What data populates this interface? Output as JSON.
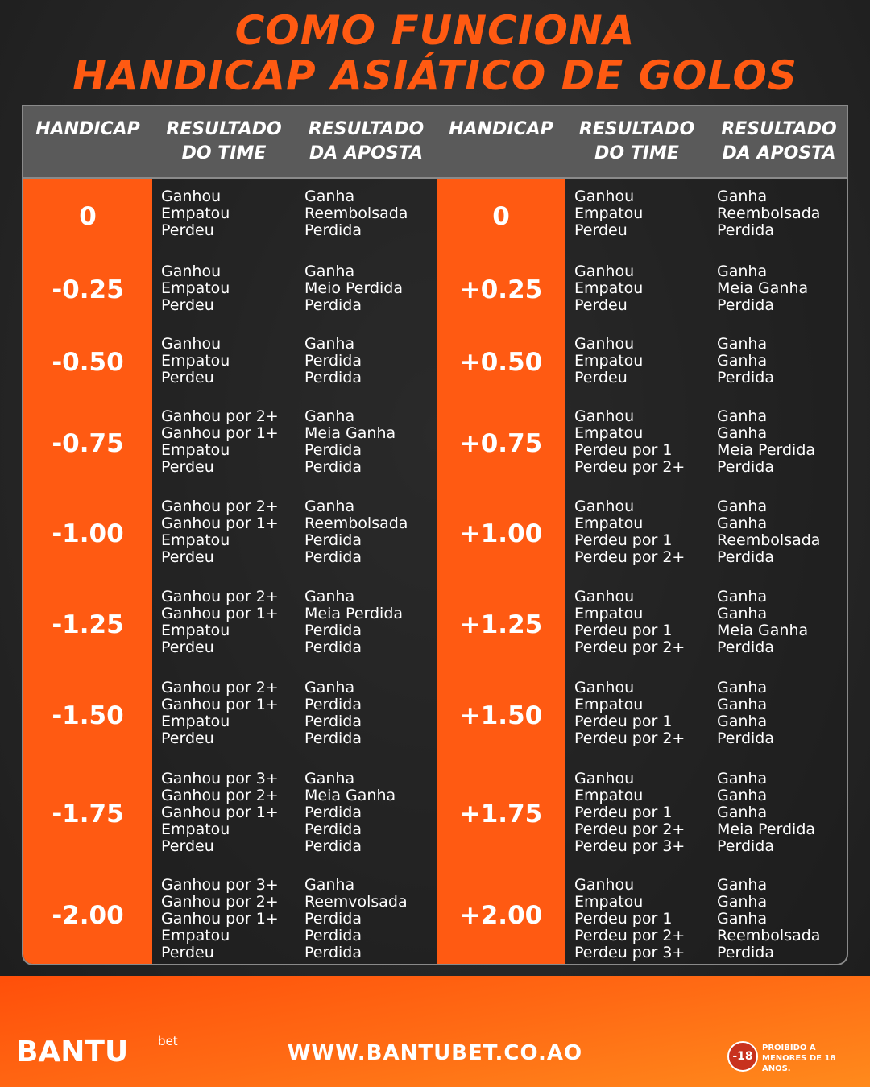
{
  "title": [
    "COMO FUNCIONA",
    "HANDICAP ASIÁTICO DE GOLOS"
  ],
  "table": {
    "headers": [
      [
        "HANDICAP"
      ],
      [
        "RESULTADO",
        "DO TIME"
      ],
      [
        "RESULTADO",
        "DA APOSTA"
      ],
      [
        "HANDICAP"
      ],
      [
        "RESULTADO",
        "DO TIME"
      ],
      [
        "RESULTADO",
        "DA APOSTA"
      ]
    ],
    "rows": [
      {
        "left": {
          "handicap": "0",
          "results": [
            "Ganhou",
            "Empatou",
            "Perdeu"
          ],
          "bets": [
            "Ganha",
            "Reembolsada",
            "Perdida"
          ]
        },
        "right": {
          "handicap": "0",
          "results": [
            "Ganhou",
            "Empatou",
            "Perdeu"
          ],
          "bets": [
            "Ganha",
            "Reembolsada",
            "Perdida"
          ]
        }
      },
      {
        "left": {
          "handicap": "-0.25",
          "results": [
            "Ganhou",
            "Empatou",
            "Perdeu"
          ],
          "bets": [
            "Ganha",
            "Meio Perdida",
            "Perdida"
          ]
        },
        "right": {
          "handicap": "+0.25",
          "results": [
            "Ganhou",
            "Empatou",
            "Perdeu"
          ],
          "bets": [
            "Ganha",
            "Meia Ganha",
            "Perdida"
          ]
        }
      },
      {
        "left": {
          "handicap": "-0.50",
          "results": [
            "Ganhou",
            "Empatou",
            "Perdeu"
          ],
          "bets": [
            "Ganha",
            "Perdida",
            "Perdida"
          ]
        },
        "right": {
          "handicap": "+0.50",
          "results": [
            "Ganhou",
            "Empatou",
            "Perdeu"
          ],
          "bets": [
            "Ganha",
            "Ganha",
            "Perdida"
          ]
        }
      },
      {
        "left": {
          "handicap": "-0.75",
          "results": [
            "Ganhou por 2+",
            "Ganhou por 1+",
            "Empatou",
            "Perdeu"
          ],
          "bets": [
            "Ganha",
            "Meia Ganha",
            "Perdida",
            "Perdida"
          ]
        },
        "right": {
          "handicap": "+0.75",
          "results": [
            "Ganhou",
            "Empatou",
            "Perdeu por 1",
            "Perdeu por 2+"
          ],
          "bets": [
            "Ganha",
            "Ganha",
            "Meia Perdida",
            "Perdida"
          ]
        }
      },
      {
        "left": {
          "handicap": "-1.00",
          "results": [
            "Ganhou por 2+",
            "Ganhou por 1+",
            "Empatou",
            "Perdeu"
          ],
          "bets": [
            "Ganha",
            "Reembolsada",
            "Perdida",
            "Perdida"
          ]
        },
        "right": {
          "handicap": "+1.00",
          "results": [
            "Ganhou",
            "Empatou",
            "Perdeu por 1",
            "Perdeu por 2+"
          ],
          "bets": [
            "Ganha",
            "Ganha",
            "Reembolsada",
            "Perdida"
          ]
        }
      },
      {
        "left": {
          "handicap": "-1.25",
          "results": [
            "Ganhou por 2+",
            "Ganhou por 1+",
            "Empatou",
            "Perdeu"
          ],
          "bets": [
            "Ganha",
            "Meia Perdida",
            "Perdida",
            "Perdida"
          ]
        },
        "right": {
          "handicap": "+1.25",
          "results": [
            "Ganhou",
            "Empatou",
            "Perdeu por 1",
            "Perdeu por 2+"
          ],
          "bets": [
            "Ganha",
            "Ganha",
            "Meia Ganha",
            "Perdida"
          ]
        }
      },
      {
        "left": {
          "handicap": "-1.50",
          "results": [
            "Ganhou por 2+",
            "Ganhou por 1+",
            "Empatou",
            "Perdeu"
          ],
          "bets": [
            "Ganha",
            "Perdida",
            "Perdida",
            "Perdida"
          ]
        },
        "right": {
          "handicap": "+1.50",
          "results": [
            "Ganhou",
            "Empatou",
            "Perdeu por 1",
            "Perdeu por 2+"
          ],
          "bets": [
            "Ganha",
            "Ganha",
            "Ganha",
            "Perdida"
          ]
        }
      },
      {
        "left": {
          "handicap": "-1.75",
          "results": [
            "Ganhou por 3+",
            "Ganhou por 2+",
            "Ganhou por 1+",
            "Empatou",
            "Perdeu"
          ],
          "bets": [
            "Ganha",
            "Meia Ganha",
            "Perdida",
            "Perdida",
            "Perdida"
          ]
        },
        "right": {
          "handicap": "+1.75",
          "results": [
            "Ganhou",
            "Empatou",
            "Perdeu por 1",
            "Perdeu por 2+",
            "Perdeu por 3+"
          ],
          "bets": [
            "Ganha",
            "Ganha",
            "Ganha",
            "Meia Perdida",
            "Perdida"
          ]
        }
      },
      {
        "left": {
          "handicap": "-2.00",
          "results": [
            "Ganhou por 3+",
            "Ganhou por 2+",
            "Ganhou por 1+",
            "Empatou",
            "Perdeu"
          ],
          "bets": [
            "Ganha",
            "Reemvolsada",
            "Perdida",
            "Perdida",
            "Perdida"
          ]
        },
        "right": {
          "handicap": "+2.00",
          "results": [
            "Ganhou",
            "Empatou",
            "Perdeu por 1",
            "Perdeu por 2+",
            "Perdeu por 3+"
          ],
          "bets": [
            "Ganha",
            "Ganha",
            "Ganha",
            "Reembolsada",
            "Perdida"
          ]
        }
      }
    ]
  },
  "footer": {
    "logo": "BANTU",
    "logo_sup": "bet",
    "url": "WWW.BANTUBET.CO.AO",
    "age_badge": "-18",
    "warning": "PROIBIDO A MENORES DE 18 ANOS."
  }
}
